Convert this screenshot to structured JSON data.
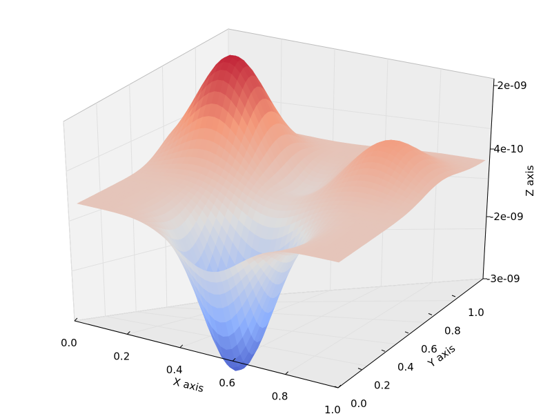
{
  "chart_data": {
    "type": "surface3d",
    "title": "",
    "xlabel": "X axis",
    "ylabel": "Y axis",
    "zlabel": "Z axis",
    "xlim": [
      0.0,
      1.0
    ],
    "ylim": [
      0.0,
      1.0
    ],
    "x_ticks": [
      "0.0",
      "0.2",
      "0.4",
      "0.6",
      "0.8",
      "1.0"
    ],
    "y_ticks": [
      "0.0",
      "0.2",
      "0.4",
      "0.6",
      "0.8",
      "1.0"
    ],
    "z_ticks": [
      "-3e-09",
      "-2e-09",
      "4e-10",
      "2e-09"
    ],
    "zlim": [
      -3e-09,
      2e-09
    ],
    "colormap": "coolwarm",
    "grid": true,
    "surface_features": [
      {
        "kind": "peak",
        "x": 0.2,
        "y": 0.7,
        "z": 2e-09
      },
      {
        "kind": "peak",
        "x": 0.8,
        "y": 0.7,
        "z": 8e-10
      },
      {
        "kind": "trough",
        "x": 0.5,
        "y": 0.2,
        "z": -3e-09
      },
      {
        "kind": "shallow_dip",
        "x": 0.5,
        "y": 0.65,
        "z": -4e-10
      }
    ],
    "baseline_z": 0.0
  }
}
